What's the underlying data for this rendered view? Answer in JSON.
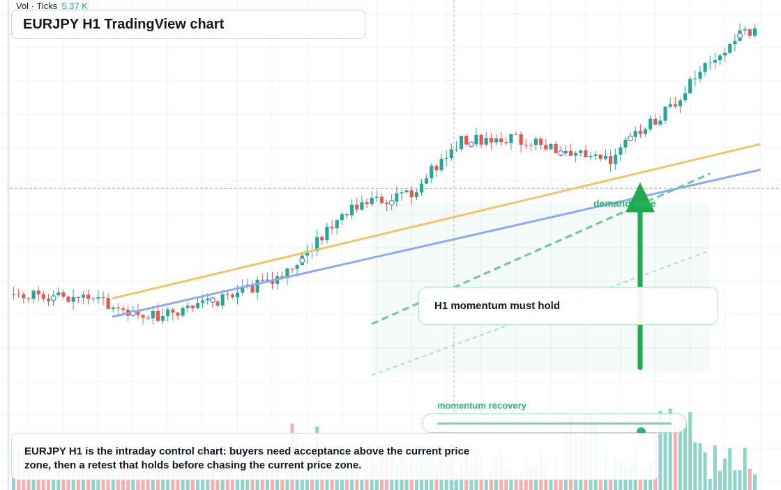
{
  "header": {
    "vol_label": "Vol · Ticks",
    "vol_value": "5.37 K",
    "title": "EURJPY H1 TradingView chart"
  },
  "annotations": {
    "callout": "H1 momentum must hold",
    "demand_zone": "demand zone",
    "momentum_label": "momentum recovery",
    "momentum_level": 0.87,
    "note": "EURJPY H1 is the intraday control chart: buyers need acceptance above the current price zone, then a retest that holds before chasing the current price zone."
  },
  "colors": {
    "up": "#26a69a",
    "down": "#ef5350",
    "vol_up": "#8fd3c9",
    "vol_down": "#f6aeb0",
    "trend_orange": "#f5c26b",
    "trend_blue": "#8fa9f0",
    "accent_green": "#2fb36c"
  },
  "chart_data": {
    "type": "candlestick",
    "title": "EURJPY H1 TradingView chart",
    "ylim": [
      0,
      100
    ],
    "bars": 150,
    "seed": 20240611,
    "price_path": [
      [
        0,
        25
      ],
      [
        14,
        24
      ],
      [
        28,
        19
      ],
      [
        40,
        23
      ],
      [
        54,
        30
      ],
      [
        60,
        38
      ],
      [
        68,
        49
      ],
      [
        80,
        53
      ],
      [
        90,
        67
      ],
      [
        100,
        68
      ],
      [
        112,
        63
      ],
      [
        120,
        62
      ],
      [
        124,
        68
      ],
      [
        130,
        73
      ],
      [
        138,
        86
      ],
      [
        146,
        96
      ],
      [
        150,
        98
      ]
    ],
    "volume_range": [
      0,
      100
    ],
    "trendlines": [
      {
        "name": "orange",
        "from": [
          20,
          24
        ],
        "to": [
          150,
          66
        ]
      },
      {
        "name": "blue",
        "from": [
          20,
          19
        ],
        "to": [
          150,
          59
        ]
      }
    ],
    "dashed_lines": [
      {
        "name": "support-projection",
        "from": [
          72,
          17
        ],
        "to": [
          140,
          58
        ]
      },
      {
        "name": "lower-projection",
        "from": [
          72,
          3
        ],
        "to": [
          140,
          37
        ]
      }
    ],
    "current_price_level": 54,
    "markers": [
      8,
      24,
      40,
      58,
      76,
      92,
      110,
      124,
      146
    ]
  }
}
